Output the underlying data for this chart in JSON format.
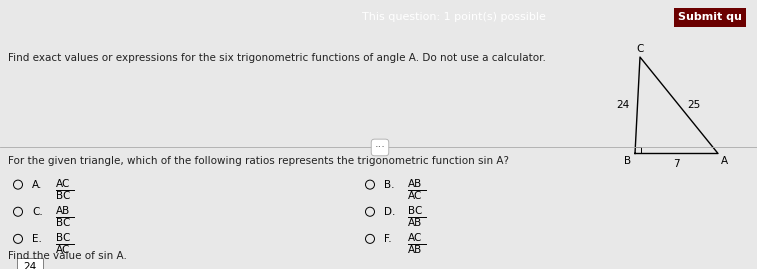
{
  "title_bar_text": "This question: 1 point(s) possible",
  "submit_text": "Submit qu",
  "instruction": "Find exact values or expressions for the six trigonometric functions of angle A. Do not use a calculator.",
  "question": "For the given triangle, which of the following ratios represents the trigonometric function sin A?",
  "options_left": [
    {
      "label": "A.",
      "num": "AC",
      "den": "BC"
    },
    {
      "label": "C.",
      "num": "AB",
      "den": "BC"
    },
    {
      "label": "E.",
      "num": "BC",
      "den": "AC"
    }
  ],
  "options_right": [
    {
      "label": "B.",
      "num": "AB",
      "den": "AC"
    },
    {
      "label": "D.",
      "num": "BC",
      "den": "AB"
    },
    {
      "label": "F.",
      "num": "AC",
      "den": "AB"
    }
  ],
  "find_value_text": "Find the value of sin A.",
  "answer_box": "24",
  "bg_color": "#e8e8e8",
  "header_bg": "#8B0000",
  "header_text_color": "#ffffff",
  "body_text_color": "#222222",
  "divider_color": "#aaaaaa",
  "triangle_BC": 24,
  "triangle_AB": 7,
  "triangle_AC": 25
}
